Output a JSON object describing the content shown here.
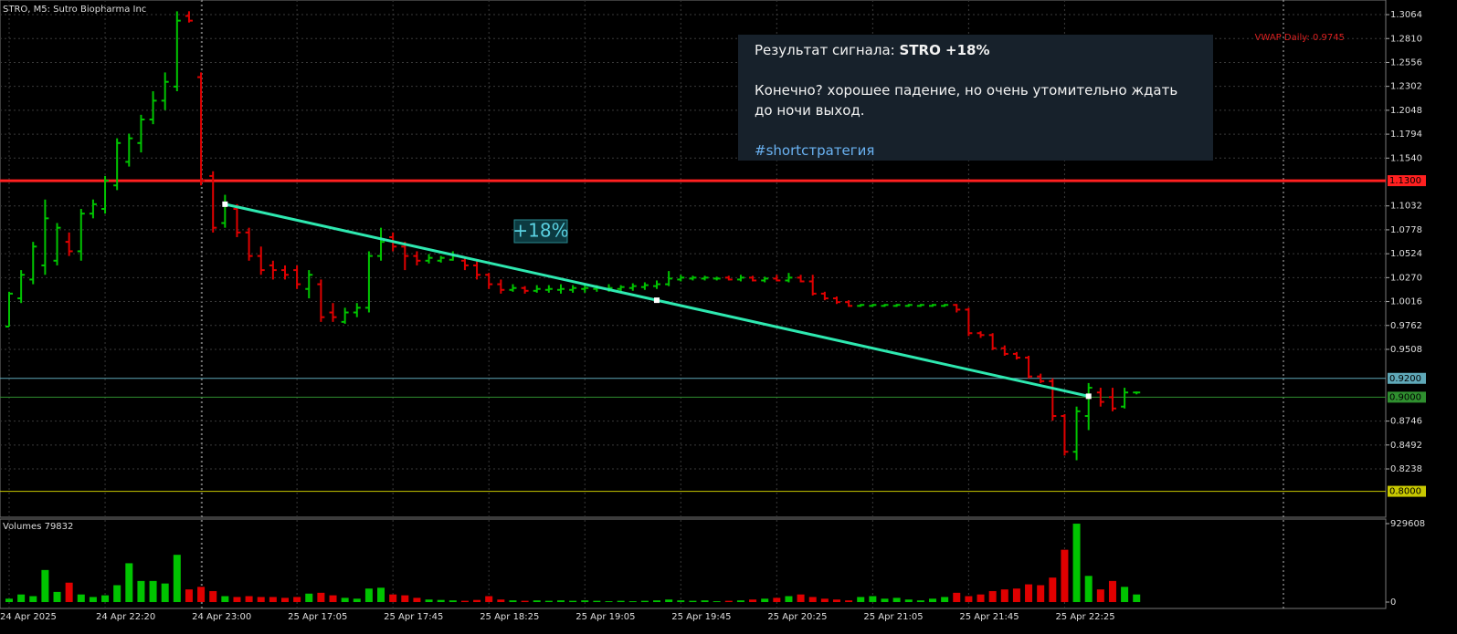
{
  "chart_data": {
    "type": "ohlc",
    "title": "STRO, M5:  Sutro Biopharma Inc",
    "categories": [
      "24 Apr 2025",
      null,
      null,
      null,
      null,
      null,
      null,
      null,
      "24 Apr 22:20",
      null,
      null,
      null,
      null,
      null,
      null,
      null,
      "24 Apr 23:00",
      null,
      null,
      null,
      null,
      null,
      null,
      null,
      "25 Apr 17:05",
      null,
      null,
      null,
      null,
      null,
      null,
      null,
      "25 Apr 17:45",
      null,
      null,
      null,
      null,
      null,
      null,
      null,
      "25 Apr 18:25",
      null,
      null,
      null,
      null,
      null,
      null,
      null,
      "25 Apr 19:05",
      null,
      null,
      null,
      null,
      null,
      null,
      null,
      "25 Apr 19:45",
      null,
      null,
      null,
      null,
      null,
      null,
      null,
      "25 Apr 20:25",
      null,
      null,
      null,
      null,
      null,
      null,
      null,
      "25 Apr 21:05",
      null,
      null,
      null,
      null,
      null,
      null,
      null,
      "25 Apr 21:45",
      null,
      null,
      null,
      null,
      null,
      null,
      null,
      "25 Apr 22:25",
      null,
      null,
      null,
      null,
      null,
      null
    ],
    "open": [
      0.975,
      1.005,
      1.025,
      1.04,
      1.045,
      1.065,
      1.055,
      1.095,
      1.1,
      1.125,
      1.15,
      1.17,
      1.195,
      1.215,
      1.23,
      1.305,
      1.24,
      1.135,
      1.085,
      1.1,
      1.075,
      1.05,
      1.04,
      1.035,
      1.035,
      1.015,
      1.02,
      0.99,
      0.98,
      0.99,
      0.995,
      1.05,
      1.07,
      1.06,
      1.05,
      1.045,
      1.045,
      1.046,
      1.045,
      1.04,
      1.03,
      1.02,
      1.014,
      1.016,
      1.013,
      1.014,
      1.014,
      1.014,
      1.015,
      1.015,
      1.015,
      1.015,
      1.016,
      1.017,
      1.018,
      1.02,
      1.025,
      1.026,
      1.026,
      1.026,
      1.027,
      1.025,
      1.027,
      1.024,
      1.026,
      1.024,
      1.027,
      1.023,
      1.01,
      1.005,
      1.001,
      0.997,
      0.997,
      0.997,
      0.997,
      0.997,
      0.997,
      0.997,
      0.997,
      0.998,
      0.993,
      0.968,
      0.966,
      0.952,
      0.946,
      0.942,
      0.922,
      0.917,
      0.88,
      0.842,
      0.88,
      0.905,
      0.9,
      0.89,
      0.905
    ],
    "high": [
      1.012,
      1.035,
      1.065,
      1.11,
      1.085,
      1.075,
      1.1,
      1.11,
      1.135,
      1.175,
      1.18,
      1.2,
      1.225,
      1.245,
      1.31,
      1.31,
      1.245,
      1.14,
      1.115,
      1.105,
      1.08,
      1.06,
      1.045,
      1.04,
      1.04,
      1.035,
      1.025,
      1.0,
      0.995,
      1.0,
      1.055,
      1.08,
      1.075,
      1.065,
      1.055,
      1.052,
      1.05,
      1.055,
      1.048,
      1.045,
      1.032,
      1.025,
      1.02,
      1.018,
      1.019,
      1.019,
      1.02,
      1.019,
      1.02,
      1.019,
      1.02,
      1.019,
      1.021,
      1.022,
      1.024,
      1.034,
      1.03,
      1.029,
      1.029,
      1.028,
      1.029,
      1.03,
      1.029,
      1.028,
      1.03,
      1.032,
      1.03,
      1.03,
      1.012,
      1.007,
      1.003,
      0.999,
      0.999,
      0.999,
      0.999,
      0.999,
      0.999,
      0.999,
      0.999,
      0.999,
      0.995,
      0.97,
      0.968,
      0.955,
      0.948,
      0.944,
      0.925,
      0.92,
      0.882,
      0.89,
      0.915,
      0.91,
      0.91,
      0.91,
      0.906
    ],
    "low": [
      0.975,
      1.0,
      1.02,
      1.03,
      1.04,
      1.05,
      1.045,
      1.09,
      1.095,
      1.12,
      1.145,
      1.16,
      1.19,
      1.205,
      1.225,
      1.298,
      1.125,
      1.075,
      1.08,
      1.07,
      1.045,
      1.03,
      1.025,
      1.025,
      1.015,
      1.005,
      0.98,
      0.98,
      0.978,
      0.985,
      0.99,
      1.045,
      1.055,
      1.035,
      1.04,
      1.042,
      1.043,
      1.045,
      1.035,
      1.025,
      1.015,
      1.01,
      1.012,
      1.01,
      1.011,
      1.011,
      1.01,
      1.011,
      1.011,
      1.012,
      1.012,
      1.012,
      1.013,
      1.014,
      1.015,
      1.018,
      1.023,
      1.024,
      1.024,
      1.024,
      1.024,
      1.023,
      1.023,
      1.022,
      1.023,
      1.022,
      1.022,
      1.008,
      1.003,
      0.999,
      0.996,
      0.996,
      0.996,
      0.996,
      0.996,
      0.996,
      0.996,
      0.996,
      0.996,
      0.99,
      0.965,
      0.963,
      0.95,
      0.944,
      0.94,
      0.92,
      0.915,
      0.875,
      0.838,
      0.833,
      0.865,
      0.89,
      0.885,
      0.888,
      0.903
    ],
    "close": [
      1.01,
      1.03,
      1.06,
      1.09,
      1.08,
      1.055,
      1.095,
      1.105,
      1.13,
      1.17,
      1.175,
      1.195,
      1.215,
      1.235,
      1.3,
      1.3,
      1.13,
      1.08,
      1.105,
      1.075,
      1.05,
      1.035,
      1.035,
      1.03,
      1.02,
      1.03,
      0.985,
      0.985,
      0.99,
      0.995,
      1.05,
      1.065,
      1.06,
      1.05,
      1.045,
      1.048,
      1.048,
      1.05,
      1.04,
      1.03,
      1.02,
      1.014,
      1.016,
      1.013,
      1.015,
      1.015,
      1.015,
      1.016,
      1.016,
      1.016,
      1.016,
      1.017,
      1.018,
      1.019,
      1.02,
      1.026,
      1.027,
      1.027,
      1.027,
      1.026,
      1.025,
      1.027,
      1.024,
      1.026,
      1.024,
      1.027,
      1.023,
      1.01,
      1.005,
      1.001,
      0.997,
      0.998,
      0.998,
      0.998,
      0.998,
      0.998,
      0.998,
      0.998,
      0.998,
      0.993,
      0.968,
      0.966,
      0.952,
      0.946,
      0.942,
      0.922,
      0.917,
      0.88,
      0.842,
      0.885,
      0.91,
      0.895,
      0.888,
      0.905,
      0.905
    ],
    "up_color": "#00c400",
    "down_color": "#e00000",
    "ylim": [
      0.7744,
      1.3171
    ],
    "yticks": [
      1.3064,
      {
        "value": 1.281,
        "label": "1.2810"
      },
      1.2556,
      1.2302,
      1.2048,
      1.1794,
      {
        "value": 1.154,
        "label": "1.1540"
      },
      1.1032,
      1.0778,
      1.0524,
      {
        "value": 1.027,
        "label": "1.0270"
      },
      1.0016,
      0.9762,
      0.9508,
      0.8746,
      0.8492,
      0.8238
    ],
    "grid": true,
    "levels": [
      {
        "value": 1.13,
        "label": "1.1300",
        "color": "#ff2020"
      },
      {
        "value": 0.92,
        "label": "0.9200",
        "color": "#5fa8b8"
      },
      {
        "value": 0.9,
        "label": "0.9000",
        "color": "#2f8f2f"
      },
      {
        "value": 0.8,
        "label": "0.8000",
        "color": "#c8c800"
      }
    ],
    "vwap_label": "VWAP Daily: 0.9745",
    "trendline": {
      "label": "+18%",
      "x": [
        18,
        54,
        90
      ],
      "values": [
        1.105,
        1.003,
        0.901
      ],
      "color": "#2ee8b0"
    },
    "volume": {
      "title": "Volumes 79832",
      "values": [
        40000,
        90000,
        70000,
        380000,
        120000,
        230000,
        90000,
        60000,
        80000,
        200000,
        460000,
        250000,
        250000,
        220000,
        560000,
        150000,
        180000,
        130000,
        70000,
        60000,
        70000,
        60000,
        60000,
        50000,
        60000,
        100000,
        110000,
        80000,
        50000,
        40000,
        160000,
        170000,
        90000,
        80000,
        50000,
        30000,
        25000,
        20000,
        15000,
        25000,
        70000,
        30000,
        20000,
        15000,
        20000,
        15000,
        20000,
        15000,
        20000,
        15000,
        10000,
        15000,
        10000,
        15000,
        20000,
        30000,
        20000,
        15000,
        20000,
        10000,
        15000,
        20000,
        30000,
        40000,
        50000,
        70000,
        90000,
        60000,
        40000,
        30000,
        20000,
        60000,
        70000,
        40000,
        50000,
        30000,
        20000,
        40000,
        60000,
        110000,
        70000,
        90000,
        130000,
        150000,
        160000,
        210000,
        200000,
        290000,
        620000,
        929000,
        310000,
        150000,
        250000,
        180000,
        90000
      ],
      "ylim": [
        0,
        929608
      ],
      "yticks": [
        0,
        929608
      ]
    }
  },
  "message": {
    "title_prefix": "Результат сигнала:",
    "title_bold": "STRO +18%",
    "body": "Конечно? хорошее падение, но очень утомительно ждать до ночи выход.",
    "hashtag": "#shortстратегия"
  }
}
